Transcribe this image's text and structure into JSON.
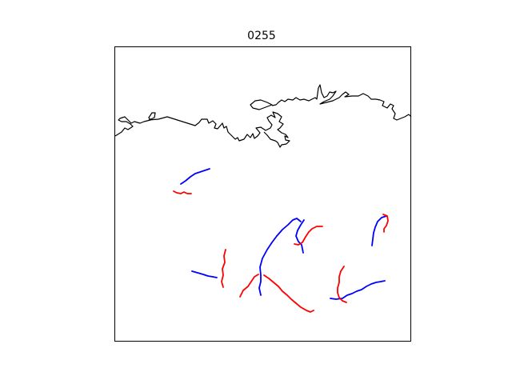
{
  "title": "0255",
  "colors": {
    "coastline": "#000000",
    "track_a": "#0000ff",
    "track_b": "#ff0000",
    "frame": "#000000",
    "background": "#ffffff"
  },
  "map": {
    "type": "map",
    "ticks": "none",
    "coastline": "present",
    "legend": "none",
    "tracks": [
      {
        "color": "blue"
      },
      {
        "color": "red"
      },
      {
        "color": "blue"
      },
      {
        "color": "red"
      },
      {
        "color": "blue"
      },
      {
        "color": "red"
      },
      {
        "color": "blue"
      },
      {
        "color": "red"
      },
      {
        "color": "blue"
      },
      {
        "color": "red"
      },
      {
        "color": "blue"
      },
      {
        "color": "red"
      },
      {
        "color": "red"
      },
      {
        "color": "blue"
      }
    ]
  }
}
